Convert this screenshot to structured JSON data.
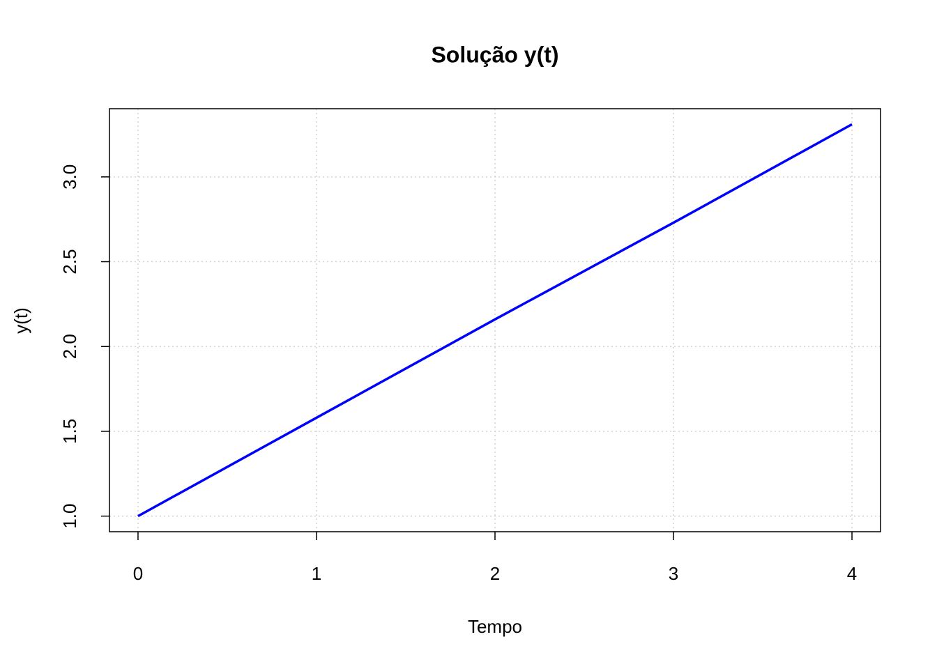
{
  "chart_data": {
    "type": "line",
    "title": "Solução y(t)",
    "xlabel": "Tempo",
    "ylabel": "y(t)",
    "x": [
      0,
      1,
      2,
      3,
      4
    ],
    "series": [
      {
        "name": "y(t)",
        "color": "#0000ff",
        "values": [
          1,
          1.58,
          2.16,
          2.73,
          3.31
        ]
      }
    ],
    "xlim": [
      -0.16,
      4.16
    ],
    "xticks": [
      0,
      1,
      2,
      3,
      4
    ],
    "ylim": [
      0.908,
      3.402
    ],
    "yticks": [
      {
        "value": 1.0,
        "label": "1.0"
      },
      1.5,
      {
        "value": 2.0,
        "label": "2.0"
      },
      2.5,
      {
        "value": 3.0,
        "label": "3.0"
      }
    ],
    "grid": true
  }
}
